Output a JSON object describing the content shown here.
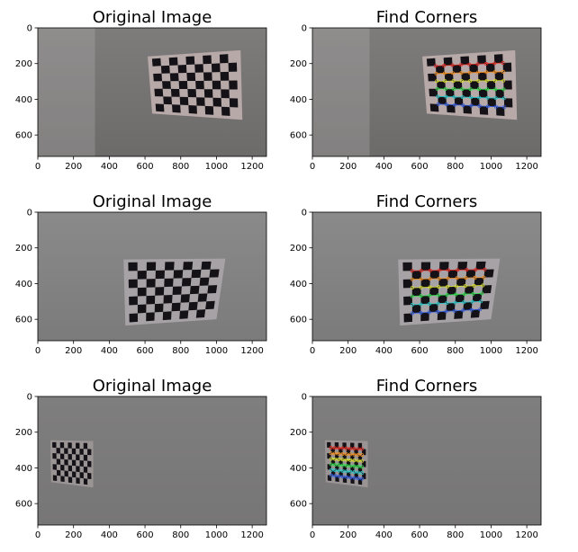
{
  "figure": {
    "background": "#ffffff",
    "panels": [
      {
        "title": "Original Image",
        "variant": "orig",
        "board": "A"
      },
      {
        "title": "Find Corners",
        "variant": "corners",
        "board": "A"
      },
      {
        "title": "Original Image",
        "variant": "orig",
        "board": "B"
      },
      {
        "title": "Find Corners",
        "variant": "corners",
        "board": "B"
      },
      {
        "title": "Original Image",
        "variant": "orig",
        "board": "C"
      },
      {
        "title": "Find Corners",
        "variant": "corners",
        "board": "C"
      }
    ]
  },
  "chart_data": [
    {
      "type": "image",
      "title": "Original Image",
      "xlim": [
        0,
        1280
      ],
      "ylim": [
        720,
        0
      ],
      "x_ticks": [
        "0",
        "200",
        "400",
        "600",
        "800",
        "1000",
        "1200"
      ],
      "y_ticks": [
        "0",
        "200",
        "400",
        "600"
      ]
    },
    {
      "type": "image",
      "title": "Find Corners",
      "xlim": [
        0,
        1280
      ],
      "ylim": [
        720,
        0
      ],
      "x_ticks": [
        "0",
        "200",
        "400",
        "600",
        "800",
        "1000",
        "1200"
      ],
      "y_ticks": [
        "0",
        "200",
        "400",
        "600"
      ]
    },
    {
      "type": "image",
      "title": "Original Image",
      "xlim": [
        0,
        1280
      ],
      "ylim": [
        720,
        0
      ],
      "x_ticks": [
        "0",
        "200",
        "400",
        "600",
        "800",
        "1000",
        "1200"
      ],
      "y_ticks": [
        "0",
        "200",
        "400",
        "600"
      ]
    },
    {
      "type": "image",
      "title": "Find Corners",
      "xlim": [
        0,
        1280
      ],
      "ylim": [
        720,
        0
      ],
      "x_ticks": [
        "0",
        "200",
        "400",
        "600",
        "800",
        "1000",
        "1200"
      ],
      "y_ticks": [
        "0",
        "200",
        "400",
        "600"
      ]
    },
    {
      "type": "image",
      "title": "Original Image",
      "xlim": [
        0,
        1280
      ],
      "ylim": [
        720,
        0
      ],
      "x_ticks": [
        "0",
        "200",
        "400",
        "600",
        "800",
        "1000",
        "1200"
      ],
      "y_ticks": [
        "0",
        "200",
        "400",
        "600"
      ]
    },
    {
      "type": "image",
      "title": "Find Corners",
      "xlim": [
        0,
        1280
      ],
      "ylim": [
        720,
        0
      ],
      "x_ticks": [
        "0",
        "200",
        "400",
        "600",
        "800",
        "1000",
        "1200"
      ],
      "y_ticks": [
        "0",
        "200",
        "400",
        "600"
      ]
    }
  ],
  "boards": {
    "A": {
      "bg_top": "#7d7c7b",
      "bg_bottom": "#6c6b6a",
      "quad": [
        [
          615,
          160
        ],
        [
          1135,
          125
        ],
        [
          1145,
          515
        ],
        [
          640,
          480
        ]
      ],
      "paper": "#b8a9a9"
    },
    "B": {
      "bg_top": "#8a8a8a",
      "bg_bottom": "#7b7b7b",
      "quad": [
        [
          480,
          265
        ],
        [
          1050,
          260
        ],
        [
          1000,
          600
        ],
        [
          490,
          635
        ]
      ],
      "paper": "#a7a2a6"
    },
    "C": {
      "bg_top": "#7f7e7e",
      "bg_bottom": "#777676",
      "quad": [
        [
          70,
          245
        ],
        [
          310,
          250
        ],
        [
          310,
          510
        ],
        [
          75,
          480
        ]
      ],
      "paper": "#9a9494"
    }
  },
  "corner_colors": [
    "#e0241d",
    "#f58f1e",
    "#d8e02a",
    "#2ee04a",
    "#29c9c9",
    "#2f5ae0",
    "#8a2fe0"
  ]
}
